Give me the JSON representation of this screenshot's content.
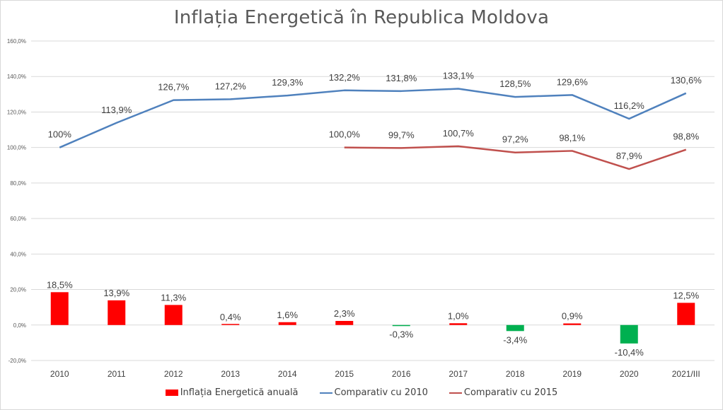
{
  "chart_data": {
    "type": "bar",
    "title": "Inflația Energetică în Republica Moldova",
    "xlabel": "",
    "ylabel": "",
    "ylim": [
      -20,
      160
    ],
    "y_ticks": [
      "-20,0%",
      "0,0%",
      "20,0%",
      "40,0%",
      "60,0%",
      "80,0%",
      "100,0%",
      "120,0%",
      "140,0%",
      "160,0%"
    ],
    "y_tick_values": [
      -20,
      0,
      20,
      40,
      60,
      80,
      100,
      120,
      140,
      160
    ],
    "grid": true,
    "legend_position": "bottom",
    "categories": [
      "2010",
      "2011",
      "2012",
      "2013",
      "2014",
      "2015",
      "2016",
      "2017",
      "2018",
      "2019",
      "2020",
      "2021/III"
    ],
    "series": [
      {
        "name": "Inflația Energetică anuală",
        "type": "bar",
        "color": "#FF0000",
        "negative_color": "#00B050",
        "values": [
          18.5,
          13.9,
          11.3,
          0.4,
          1.6,
          2.3,
          -0.3,
          1.0,
          -3.4,
          0.9,
          -10.4,
          12.5
        ],
        "labels": [
          "18,5%",
          "13,9%",
          "11,3%",
          "0,4%",
          "1,6%",
          "2,3%",
          "-0,3%",
          "1,0%",
          "-3,4%",
          "0,9%",
          "-10,4%",
          "12,5%"
        ]
      },
      {
        "name": "Comparativ cu 2010",
        "type": "line",
        "color": "#4F81BD",
        "values": [
          100,
          113.9,
          126.7,
          127.2,
          129.3,
          132.2,
          131.8,
          133.1,
          128.5,
          129.6,
          116.2,
          130.6
        ],
        "labels": [
          "100%",
          "113,9%",
          "126,7%",
          "127,2%",
          "129,3%",
          "132,2%",
          "131,8%",
          "133,1%",
          "128,5%",
          "129,6%",
          "116,2%",
          "130,6%"
        ]
      },
      {
        "name": "Comparativ cu 2015",
        "type": "line",
        "color": "#C0504D",
        "values": [
          null,
          null,
          null,
          null,
          null,
          100.0,
          99.7,
          100.7,
          97.2,
          98.1,
          87.9,
          98.8
        ],
        "labels": [
          null,
          null,
          null,
          null,
          null,
          "100,0%",
          "99,7%",
          "100,7%",
          "97,2%",
          "98,1%",
          "87,9%",
          "98,8%"
        ]
      }
    ]
  }
}
